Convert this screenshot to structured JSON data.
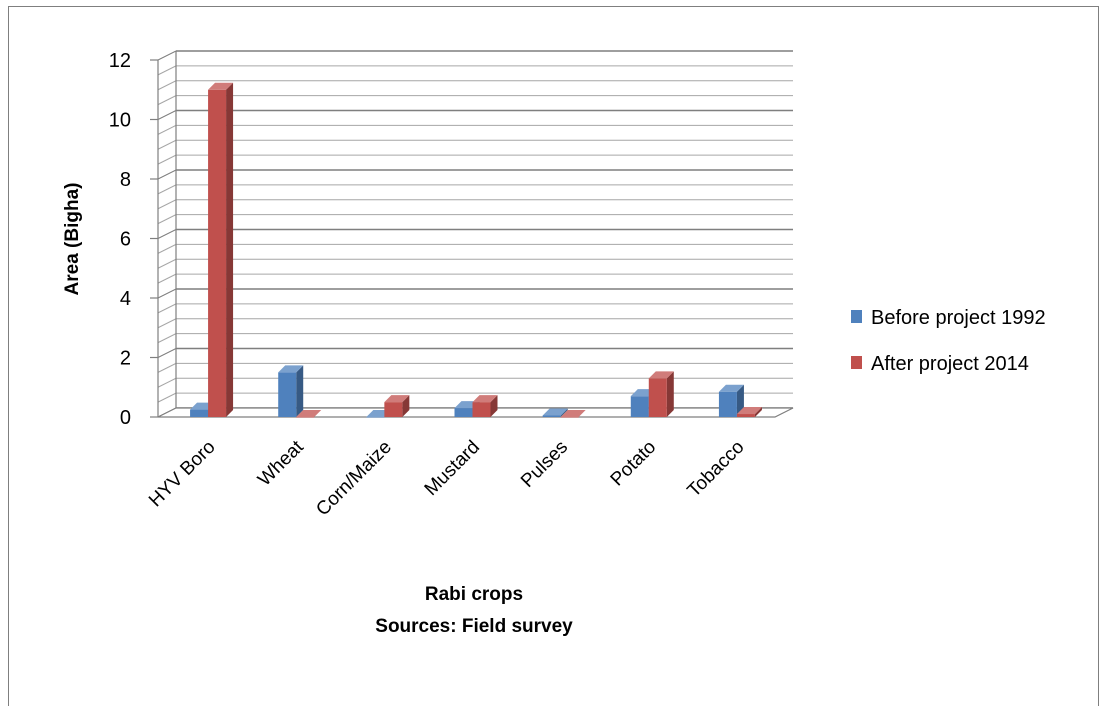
{
  "chart_data": {
    "type": "bar",
    "categories": [
      "HYV Boro",
      "Wheat",
      "Corn/Maize",
      "Mustard",
      "Pulses",
      "Potato",
      "Tobacco"
    ],
    "series": [
      {
        "name": "Before project 1992",
        "values": [
          0.25,
          1.5,
          0.0,
          0.3,
          0.05,
          0.7,
          0.85
        ],
        "color": "#4f81bd"
      },
      {
        "name": "After project 2014",
        "values": [
          11.0,
          0.0,
          0.5,
          0.5,
          0.0,
          1.3,
          0.1
        ],
        "color": "#c0504d"
      }
    ],
    "xlabel": "Rabi crops",
    "source_note": "Sources: Field survey",
    "ylabel": "Area (Bigha)",
    "ylim": [
      0,
      12
    ],
    "yticks": [
      0,
      2,
      4,
      6,
      8,
      10,
      12
    ],
    "grid": true,
    "legend_position": "right"
  }
}
